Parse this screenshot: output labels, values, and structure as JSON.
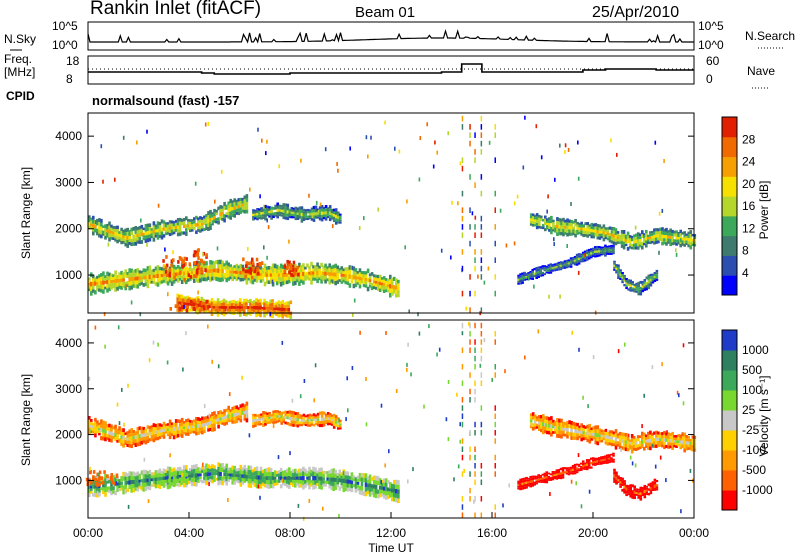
{
  "header": {
    "station": "Rankin Inlet (fitACF)",
    "beam": "Beam 01",
    "date": "25/Apr/2010"
  },
  "top_panels": {
    "nsky_label": "N.Sky",
    "nsearch_label": "N.Search",
    "nsky_ticks": [
      "10^5",
      "10^0"
    ],
    "nsearch_ticks": [
      "10^5",
      "10^0"
    ],
    "freq_label": "Freq.",
    "freq_unit": "[MHz]",
    "freq_ticks": [
      "18",
      "8"
    ],
    "nave_label": "Nave",
    "nave_ticks": [
      "60",
      "0"
    ],
    "cpid_label": "CPID",
    "cpid_text": "normalsound (fast) -157"
  },
  "colors": {
    "power": [
      "#0000ff",
      "#2a4fb0",
      "#3e7a6e",
      "#3ca85a",
      "#b5d62b",
      "#f5e000",
      "#f5a000",
      "#f06a00",
      "#e02000"
    ],
    "velocity": [
      "#ff0000",
      "#ff6000",
      "#ff9a00",
      "#ffd000",
      "#c8c8c8",
      "#78d830",
      "#3ca85a",
      "#2e8060",
      "#1e3cc8"
    ]
  },
  "chart_data": [
    {
      "type": "heatmap",
      "name": "Power",
      "ylabel": "Slant Range [km]",
      "colorbar_label": "Power [dB]",
      "colorbar_ticks": [
        "28",
        "24",
        "20",
        "16",
        "12",
        "8",
        "4"
      ],
      "y_ticks": [
        "4000",
        "3000",
        "2000",
        "1000"
      ],
      "xlim": [
        0,
        24
      ],
      "ylim": [
        180,
        4500
      ],
      "bands": [
        {
          "x": [
            0.0,
            1.5,
            3.0,
            4.5,
            5.5,
            6.3
          ],
          "y": [
            2100,
            1800,
            2000,
            2100,
            2400,
            2550
          ],
          "w": 380,
          "lv": 5
        },
        {
          "x": [
            6.5,
            7.5,
            8.5,
            9.5,
            10.0
          ],
          "y": [
            2300,
            2400,
            2300,
            2350,
            2200
          ],
          "w": 300,
          "lv": 4
        },
        {
          "x": [
            0.0,
            1.5,
            3.0,
            4.0,
            5.0,
            6.0,
            7.0,
            8.0,
            9.0,
            10.0,
            11.0,
            12.3
          ],
          "y": [
            800,
            900,
            1000,
            1050,
            1100,
            1050,
            1000,
            1000,
            1050,
            1000,
            900,
            700
          ],
          "w": 420,
          "lv": 6
        },
        {
          "x": [
            3.5,
            5.0,
            6.5,
            8.0
          ],
          "y": [
            400,
            300,
            300,
            250
          ],
          "w": 350,
          "lv": 8
        },
        {
          "x": [
            17.5,
            18.5,
            19.5,
            20.5,
            21.5,
            22.5,
            24.0
          ],
          "y": [
            2200,
            2050,
            2000,
            1900,
            1700,
            1850,
            1750
          ],
          "w": 350,
          "lv": 5
        },
        {
          "x": [
            17.0,
            18.0,
            19.0,
            20.0,
            20.8
          ],
          "y": [
            900,
            1100,
            1250,
            1500,
            1550
          ],
          "w": 220,
          "lv": 3
        },
        {
          "x": [
            20.8,
            21.3,
            21.8,
            22.5
          ],
          "y": [
            1200,
            800,
            700,
            1000
          ],
          "w": 280,
          "lv": 4
        }
      ],
      "hot": [
        {
          "x": 3.5,
          "y": 1100,
          "w": 1.2,
          "h": 500
        },
        {
          "x": 4.4,
          "y": 1200,
          "w": 0.5,
          "h": 700
        },
        {
          "x": 4.0,
          "y": 300,
          "w": 1.6,
          "h": 250
        },
        {
          "x": 6.5,
          "y": 1100,
          "w": 0.8,
          "h": 400
        },
        {
          "x": 8.0,
          "y": 1100,
          "w": 0.6,
          "h": 300
        }
      ]
    },
    {
      "type": "heatmap",
      "name": "Velocity",
      "ylabel": "Slant Range [km]",
      "xlabel": "Time UT",
      "colorbar_label": "Velocity [m s⁻¹]",
      "colorbar_ticks": [
        "1000",
        "500",
        "100",
        "25",
        "-25",
        "-100",
        "-500",
        "-1000"
      ],
      "y_ticks": [
        "4000",
        "3000",
        "2000",
        "1000"
      ],
      "x_ticks": [
        "00:00",
        "04:00",
        "08:00",
        "12:00",
        "16:00",
        "20:00",
        "00:00"
      ],
      "xlim": [
        0,
        24
      ],
      "ylim": [
        180,
        4500
      ],
      "bands": [
        {
          "x": [
            0.0,
            1.5,
            3.0,
            4.5,
            5.5,
            6.3
          ],
          "y": [
            2200,
            1900,
            2100,
            2200,
            2400,
            2500
          ],
          "w": 380,
          "lv": 4
        },
        {
          "x": [
            6.5,
            7.5,
            8.5,
            9.5,
            10.0
          ],
          "y": [
            2300,
            2400,
            2300,
            2350,
            2200
          ],
          "w": 300,
          "lv": 4
        },
        {
          "x": [
            0.0,
            1.5,
            3.0,
            4.0,
            5.0,
            6.0,
            7.0,
            8.0,
            9.0,
            10.0,
            11.0,
            12.3
          ],
          "y": [
            850,
            950,
            1050,
            1100,
            1150,
            1100,
            1050,
            1050,
            1050,
            1000,
            900,
            750
          ],
          "w": 420,
          "lv": 7
        },
        {
          "x": [
            17.5,
            18.5,
            19.5,
            20.5,
            21.5,
            22.5,
            24.0
          ],
          "y": [
            2300,
            2150,
            2050,
            1950,
            1800,
            1900,
            1800
          ],
          "w": 380,
          "lv": 4
        },
        {
          "x": [
            17.0,
            18.0,
            19.0,
            20.0,
            20.8
          ],
          "y": [
            900,
            1050,
            1200,
            1400,
            1500
          ],
          "w": 220,
          "lv": 1
        },
        {
          "x": [
            20.8,
            21.3,
            21.8,
            22.5
          ],
          "y": [
            1100,
            800,
            700,
            900
          ],
          "w": 280,
          "lv": 1
        }
      ],
      "hot": [
        {
          "x": 0.5,
          "y": 1000,
          "w": 1.2,
          "h": 300,
          "lv": 1
        },
        {
          "x": 3.5,
          "y": 1000,
          "w": 0.8,
          "h": 300,
          "lv": 5
        }
      ]
    }
  ]
}
